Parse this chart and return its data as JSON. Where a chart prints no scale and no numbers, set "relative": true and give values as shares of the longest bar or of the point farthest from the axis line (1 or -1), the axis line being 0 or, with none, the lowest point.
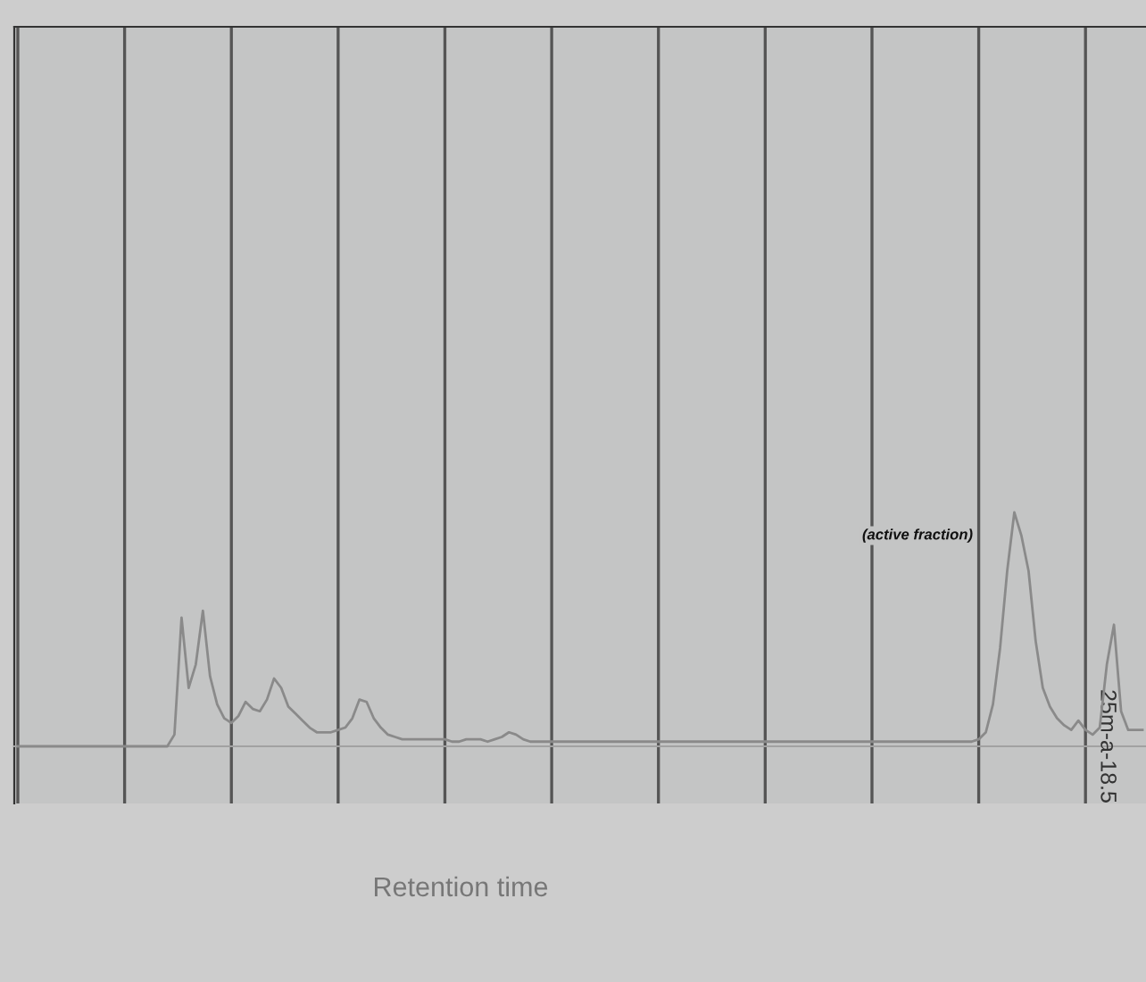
{
  "chart_data": {
    "type": "line",
    "relative": true,
    "xlabel": "Retention time",
    "grid": "x",
    "tick_labels": false,
    "annotations": [
      "(active fraction)",
      "25m-a-18.5"
    ],
    "categories": [
      null,
      null,
      null,
      null,
      null,
      null,
      null,
      null,
      null,
      null,
      null,
      null,
      null,
      null,
      null,
      null,
      null,
      null,
      null,
      null,
      null,
      null,
      null,
      null,
      null,
      null,
      null,
      null,
      null,
      null,
      null,
      null,
      null,
      null,
      null,
      null,
      null,
      null,
      null,
      null,
      null,
      null,
      null,
      null,
      null,
      null,
      null,
      null,
      null,
      null,
      null,
      null,
      null,
      null,
      null,
      null,
      null,
      null,
      null,
      null,
      null,
      null,
      null,
      null,
      null,
      null,
      null,
      null,
      null,
      null,
      null,
      null,
      null,
      null,
      null,
      null,
      null,
      null,
      null,
      null,
      null,
      null,
      null,
      null,
      null,
      null,
      null,
      null,
      null,
      null,
      null,
      null,
      null,
      null,
      null,
      null,
      null,
      null,
      null,
      null,
      null,
      null,
      null,
      null,
      null,
      null,
      null,
      null,
      null,
      null,
      null,
      null,
      null,
      null,
      null,
      null,
      null,
      null,
      null,
      null,
      null,
      null,
      null,
      null,
      null,
      null,
      null,
      null,
      null,
      null,
      null,
      null,
      null,
      null,
      null,
      null,
      null,
      null,
      null,
      null,
      null,
      null,
      null,
      null,
      null,
      null,
      null,
      null,
      null,
      null,
      null,
      null,
      null,
      null,
      null,
      null,
      null,
      null,
      null
    ],
    "series": [
      {
        "color": "#8a8a8a",
        "values": [
          0,
          0,
          0,
          0,
          0,
          0,
          0,
          0,
          0,
          0,
          0,
          0,
          0,
          0,
          0,
          0,
          0,
          0,
          0,
          0,
          0,
          0,
          0.05,
          0.55,
          0.25,
          0.35,
          0.58,
          0.3,
          0.18,
          0.12,
          0.1,
          0.13,
          0.19,
          0.16,
          0.15,
          0.2,
          0.29,
          0.25,
          0.17,
          0.14,
          0.11,
          0.08,
          0.06,
          0.06,
          0.06,
          0.07,
          0.08,
          0.12,
          0.2,
          0.19,
          0.12,
          0.08,
          0.05,
          0.04,
          0.03,
          0.03,
          0.03,
          0.03,
          0.03,
          0.03,
          0.03,
          0.02,
          0.02,
          0.03,
          0.03,
          0.03,
          0.02,
          0.03,
          0.04,
          0.06,
          0.05,
          0.03,
          0.02,
          0.02,
          0.02,
          0.02,
          0.02,
          0.02,
          0.02,
          0.02,
          0.02,
          0.02,
          0.02,
          0.02,
          0.02,
          0.02,
          0.02,
          0.02,
          0.02,
          0.02,
          0.02,
          0.02,
          0.02,
          0.02,
          0.02,
          0.02,
          0.02,
          0.02,
          0.02,
          0.02,
          0.02,
          0.02,
          0.02,
          0.02,
          0.02,
          0.02,
          0.02,
          0.02,
          0.02,
          0.02,
          0.02,
          0.02,
          0.02,
          0.02,
          0.02,
          0.02,
          0.02,
          0.02,
          0.02,
          0.02,
          0.02,
          0.02,
          0.02,
          0.02,
          0.02,
          0.02,
          0.02,
          0.02,
          0.02,
          0.02,
          0.02,
          0.02,
          0.02,
          0.02,
          0.02,
          0.03,
          0.06,
          0.18,
          0.42,
          0.75,
          1.0,
          0.9,
          0.75,
          0.45,
          0.25,
          0.17,
          0.12,
          0.09,
          0.07,
          0.11,
          0.07,
          0.05,
          0.08,
          0.35,
          0.52,
          0.15,
          0.07,
          0.07,
          0.07
        ]
      }
    ]
  }
}
